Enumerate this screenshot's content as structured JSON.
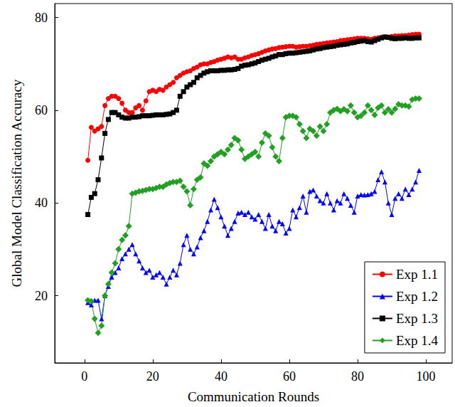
{
  "chart_data": {
    "type": "line",
    "xlabel": "Communication Rounds",
    "ylabel": "Global Model Classification Accuracy",
    "xlim": [
      -8.7,
      107.7
    ],
    "ylim": [
      5.5,
      83
    ],
    "xticks": [
      0,
      20,
      40,
      60,
      80,
      100
    ],
    "yticks": [
      20,
      40,
      60,
      80
    ],
    "grid": false,
    "legend": "lower right",
    "x": [
      1,
      2,
      3,
      4,
      5,
      6,
      7,
      8,
      9,
      10,
      11,
      12,
      13,
      14,
      15,
      16,
      17,
      18,
      19,
      20,
      21,
      22,
      23,
      24,
      25,
      26,
      27,
      28,
      29,
      30,
      31,
      32,
      33,
      34,
      35,
      36,
      37,
      38,
      39,
      40,
      41,
      42,
      43,
      44,
      45,
      46,
      47,
      48,
      49,
      50,
      51,
      52,
      53,
      54,
      55,
      56,
      57,
      58,
      59,
      60,
      61,
      62,
      63,
      64,
      65,
      66,
      67,
      68,
      69,
      70,
      71,
      72,
      73,
      74,
      75,
      76,
      77,
      78,
      79,
      80,
      81,
      82,
      83,
      84,
      85,
      86,
      87,
      88,
      89,
      90,
      91,
      92,
      93,
      94,
      95,
      96,
      97,
      98
    ],
    "series": [
      {
        "name": "Exp 1.1",
        "color": "#ff0000",
        "marker": "circle",
        "values": [
          49.2,
          56.3,
          55.5,
          56,
          56.5,
          61,
          62.5,
          63,
          63,
          62.5,
          61.5,
          60,
          59.5,
          59.5,
          60.5,
          61,
          60,
          62,
          64,
          64.3,
          64,
          64.5,
          64.3,
          65,
          65.5,
          66,
          67,
          67.5,
          68,
          68.3,
          68.5,
          69,
          69.3,
          69.8,
          70,
          70,
          70.3,
          70.5,
          70.8,
          71,
          71.2,
          71.5,
          71.3,
          71.5,
          71,
          71,
          71.3,
          71.5,
          71.8,
          72,
          72.2,
          72.5,
          72.8,
          73,
          73.2,
          73.3,
          73.5,
          73.6,
          73.7,
          73.8,
          73.8,
          73.6,
          73.7,
          73.8,
          73.8,
          73.9,
          74,
          74.2,
          74.3,
          74.4,
          74.5,
          74.6,
          74.7,
          74.8,
          75,
          75.1,
          75.2,
          75.3,
          75.4,
          75.5,
          75.5,
          75.5,
          75.4,
          75.3,
          75.5,
          75.6,
          75.7,
          75.8,
          75.8,
          75.9,
          76,
          76,
          76.1,
          76.1,
          76.2,
          76.3,
          76.4,
          76.4
        ]
      },
      {
        "name": "Exp 1.2",
        "color": "#0000ff",
        "marker": "triangle",
        "values": [
          18.5,
          18,
          19,
          19,
          15,
          20,
          22,
          24,
          25,
          26,
          28,
          29,
          30,
          31,
          29,
          27.5,
          26,
          25,
          25.5,
          24,
          24.5,
          25,
          24,
          22.5,
          24,
          25.5,
          24.5,
          27,
          31,
          33,
          30,
          29,
          30.5,
          32.5,
          34,
          36,
          38.5,
          40.8,
          39,
          37,
          35,
          33,
          34.5,
          36,
          37.8,
          38,
          37.5,
          38,
          37,
          36.5,
          37.5,
          36,
          34.5,
          37.5,
          35,
          34,
          36,
          35.5,
          33.5,
          34.5,
          38.5,
          37,
          39,
          41.5,
          38,
          42.5,
          42.8,
          41.5,
          40.5,
          40,
          42,
          40,
          38.5,
          40.5,
          40,
          42,
          41,
          39.5,
          38,
          41.5,
          41.8,
          41.7,
          41.8,
          42,
          42.5,
          45,
          46.7,
          44.5,
          40,
          37.5,
          41,
          42,
          41,
          43,
          41.8,
          43,
          44.5,
          47
        ]
      },
      {
        "name": "Exp 1.3",
        "color": "#000000",
        "marker": "square",
        "values": [
          37.5,
          41.2,
          42,
          45,
          49.7,
          55,
          58,
          59.5,
          59.5,
          59,
          58.5,
          58.3,
          58.3,
          58.5,
          58.5,
          58.6,
          58.8,
          58.8,
          58.8,
          58.9,
          59,
          59,
          59,
          59.1,
          59.2,
          59.5,
          60,
          63,
          64,
          65,
          65.5,
          66,
          67,
          67.5,
          68,
          68.3,
          68.5,
          68.5,
          68.5,
          68.6,
          68.6,
          68.7,
          68.7,
          68.8,
          69,
          69.5,
          69.7,
          69.8,
          70,
          70.2,
          70.5,
          70.8,
          71,
          71.2,
          71.5,
          71.7,
          72,
          72,
          72.2,
          72.3,
          72.3,
          72.4,
          72.5,
          72.6,
          72.7,
          72.8,
          73,
          73.2,
          73.3,
          73.5,
          73.6,
          73.7,
          73.8,
          74,
          74.1,
          74.2,
          74.3,
          74.5,
          74.6,
          74.8,
          74.9,
          75,
          74.8,
          74.7,
          75,
          75.3,
          75.6,
          75.8,
          75.7,
          75.5,
          75.4,
          75.5,
          75.5,
          75.6,
          75.5,
          75.5,
          75.6,
          75.6
        ]
      },
      {
        "name": "Exp 1.4",
        "color": "#22a022",
        "marker": "diamond",
        "values": [
          19,
          18.8,
          15,
          12,
          13.5,
          20,
          22.5,
          25,
          27,
          30,
          32,
          33,
          35,
          42,
          42.2,
          42.5,
          42.6,
          42.8,
          43,
          43,
          43.2,
          43.5,
          43.5,
          44,
          44.3,
          44.5,
          44.5,
          44.8,
          43.5,
          42.5,
          39.5,
          43,
          45,
          45.5,
          48.5,
          48,
          49,
          50,
          50.5,
          51,
          50.5,
          51.5,
          52.5,
          54,
          53.5,
          51.5,
          49.5,
          50,
          50.5,
          51,
          50,
          53,
          55,
          54.5,
          52,
          50,
          49,
          54,
          58.5,
          58.8,
          58.8,
          58.5,
          57,
          55.5,
          54,
          56,
          55.5,
          54.5,
          56.5,
          55.5,
          57,
          59.5,
          60,
          60.3,
          59.8,
          60.2,
          59.8,
          61,
          59.5,
          58.5,
          58.8,
          59.5,
          61,
          60,
          59,
          60.5,
          61,
          59.5,
          60.2,
          59.5,
          60.3,
          61.3,
          61,
          61,
          60.8,
          62.3,
          62.5,
          62.5
        ]
      }
    ]
  }
}
